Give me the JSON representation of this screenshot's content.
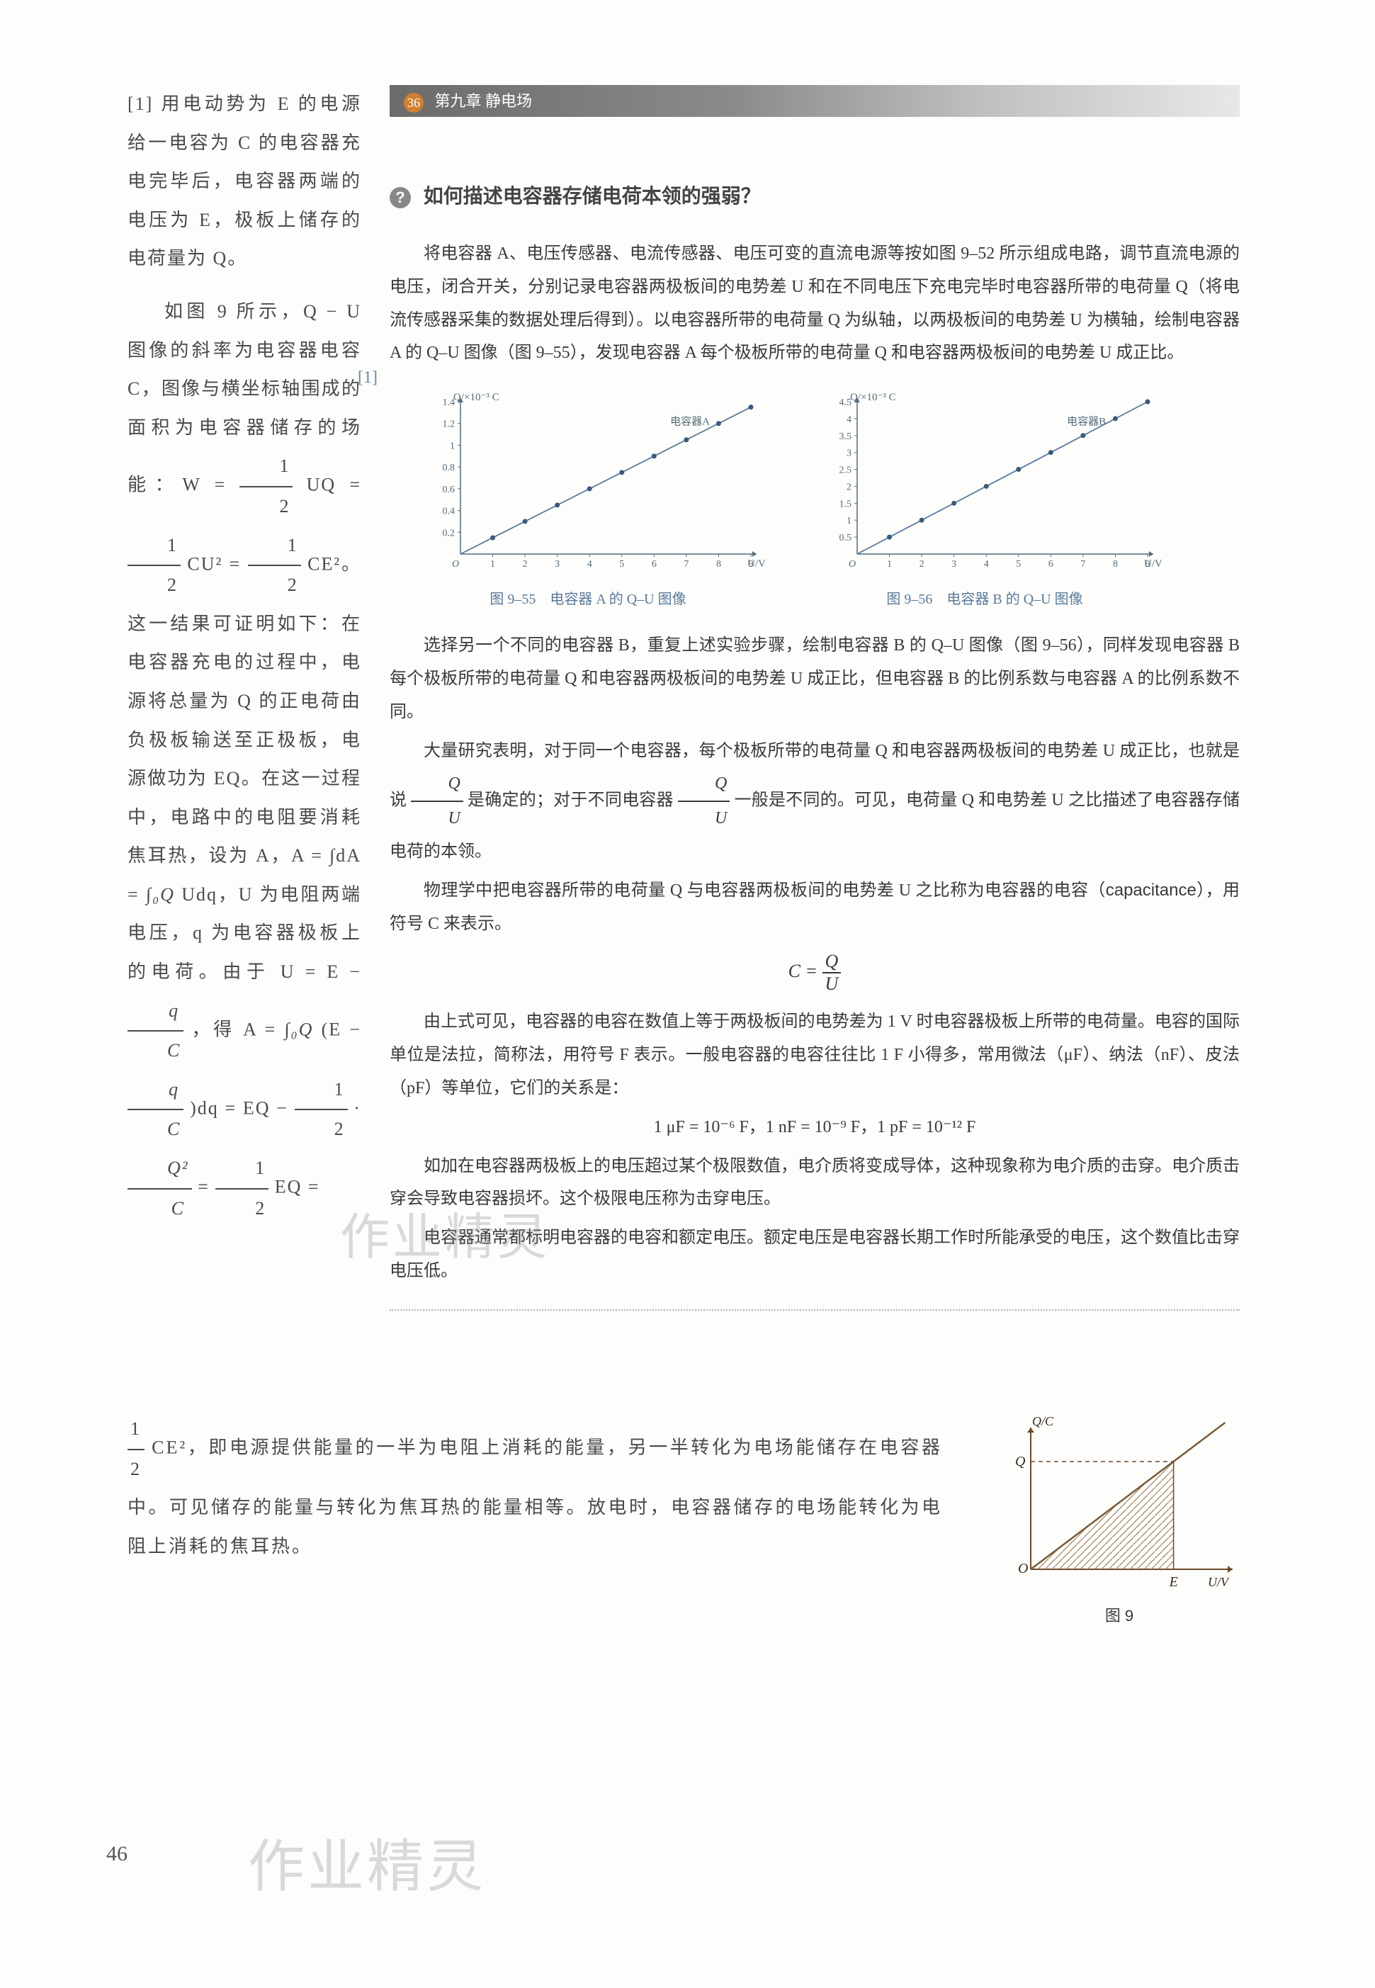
{
  "left_note": {
    "ref_label": "[1]",
    "p1": " 用电动势为 E 的电源给一电容为 C 的电容器充电完毕后，电容器两端的电压为 E，极板上储存的电荷量为 Q。",
    "p2a": "如图 9 所示，Q − U 图像的斜率为电容器电容 C，图像与横坐标轴围成的面积为电容器储存的场能：W = ",
    "frac_half": {
      "num": "1",
      "den": "2"
    },
    "p2b": "UQ = ",
    "p2c": "CU² = ",
    "p2d": "CE²。 这一结果可证明如下：在电容器充电的过程中，电源将总量为 Q 的正电荷由负极板输送至正极板，电源做功为 EQ。在这一过程中，电路中的电阻要消耗焦耳热，设为 A，A = ∫dA = ",
    "p2e": "Udq，U 为电阻两端电压，q 为电容器极板上的电荷。由于 U = E − ",
    "frac_qc": {
      "num": "q",
      "den": "C"
    },
    "p2f": "，得 A = ",
    "p2g": "(E − ",
    "p2h": ")dq = EQ − ",
    "p2i": " · ",
    "frac_q2c": {
      "num": "Q²",
      "den": "C"
    },
    "p2j": " = ",
    "p2k": "EQ = ",
    "bottom_start": "CE²，即电源提供能量的一半为电阻上消耗的能量，另一半转化为电场能储存在电容器中。可见储存的能量与转化为焦耳热的能量相等。放电时，电容器储存的电场能转化为电阻上消耗的焦耳热。",
    "integral1": "∫₀Q",
    "integral2": "∫₀Q"
  },
  "chapter": {
    "num": "36",
    "title": "第九章  静电场"
  },
  "question": "如何描述电容器存储电荷本领的强弱？",
  "main": {
    "p1": "将电容器 A、电压传感器、电流传感器、电压可变的直流电源等按如图 9–52 所示组成电路，调节直流电源的电压，闭合开关，分别记录电容器两极板间的电势差 U 和在不同电压下充电完毕时电容器所带的电荷量 Q（将电流传感器采集的数据处理后得到）。以电容器所带的电荷量 Q 为纵轴，以两极板间的电势差 U 为横轴，绘制电容器 A 的 Q–U 图像（图 9–55），发现电容器 A 每个极板所带的电荷量 Q 和电容器两极板间的电势差 U 成正比。",
    "annotation_ref": "[1]",
    "p2": "选择另一个不同的电容器 B，重复上述实验步骤，绘制电容器 B 的 Q–U 图像（图 9–56），同样发现电容器 B 每个极板所带的电荷量 Q 和电容器两极板间的电势差 U 成正比，但电容器 B 的比例系数与电容器 A 的比例系数不同。",
    "p3a": "大量研究表明，对于同一个电容器，每个极板所带的电荷量 Q 和电容器两极板间的电势差 U 成正比，也就是说 ",
    "frac_qu": {
      "num": "Q",
      "den": "U"
    },
    "p3b": " 是确定的；对于不同电容器 ",
    "p3c": " 一般是不同的。可见，电荷量 Q 和电势差 U 之比描述了电容器存储电荷的本领。",
    "p4a": "物理学中把电容器所带的电荷量 Q 与电容器两极板间的电势差 U 之比称为电容器的",
    "p4b": "电容（capacitance）",
    "p4c": "，用符号 C 来表示。",
    "formula_c": "C = Q / U",
    "p5": "由上式可见，电容器的电容在数值上等于两极板间的电势差为 1 V 时电容器极板上所带的电荷量。电容的国际单位是法拉，简称法，用符号 F 表示。一般电容器的电容往往比 1 F 小得多，常用微法（μF）、纳法（nF）、皮法（pF）等单位，它们的关系是：",
    "units_line": "1 μF = 10⁻⁶ F，1 nF = 10⁻⁹ F，1 pF = 10⁻¹² F",
    "p6": "如加在电容器两极板上的电压超过某个极限数值，电介质将变成导体，这种现象称为电介质的击穿。电介质击穿会导致电容器损坏。这个极限电压称为击穿电压。",
    "p7": "电容器通常都标明电容器的电容和额定电压。额定电压是电容器长期工作时所能承受的电压，这个数值比击穿电压低。"
  },
  "charts": {
    "chartA": {
      "ylabel": "Q/×10⁻³ C",
      "xlabel": "U/V",
      "series_label": "电容器A",
      "caption": "图 9–55　电容器 A 的 Q–U 图像",
      "xlim": [
        0,
        9
      ],
      "ylim": [
        0,
        1.4
      ],
      "xticks": [
        1,
        2,
        3,
        4,
        5,
        6,
        7,
        8,
        9
      ],
      "yticks": [
        0.2,
        0.4,
        0.6,
        0.8,
        1.0,
        1.2,
        1.4
      ],
      "points": [
        [
          1,
          0.15
        ],
        [
          2,
          0.3
        ],
        [
          3,
          0.45
        ],
        [
          4,
          0.6
        ],
        [
          5,
          0.75
        ],
        [
          6,
          0.9
        ],
        [
          7,
          1.05
        ],
        [
          8,
          1.2
        ],
        [
          9,
          1.35
        ]
      ],
      "line_color": "#5a7a9a",
      "point_color": "#3a5a7a",
      "axis_color": "#556b7a"
    },
    "chartB": {
      "ylabel": "Q/×10⁻³ C",
      "xlabel": "U/V",
      "series_label": "电容器B",
      "caption": "图 9–56　电容器 B 的 Q–U 图像",
      "xlim": [
        0,
        9
      ],
      "ylim": [
        0,
        4.5
      ],
      "xticks": [
        1,
        2,
        3,
        4,
        5,
        6,
        7,
        8,
        9
      ],
      "yticks": [
        0.5,
        1.0,
        1.5,
        2.0,
        2.5,
        3.0,
        3.5,
        4.0,
        4.5
      ],
      "points": [
        [
          1,
          0.5
        ],
        [
          2,
          1.0
        ],
        [
          3,
          1.5
        ],
        [
          4,
          2.0
        ],
        [
          5,
          2.5
        ],
        [
          6,
          3.0
        ],
        [
          7,
          3.5
        ],
        [
          8,
          4.0
        ],
        [
          9,
          4.5
        ]
      ],
      "line_color": "#5a7a9a",
      "point_color": "#3a5a7a",
      "axis_color": "#556b7a"
    }
  },
  "fig9": {
    "ylabel": "Q/C",
    "xlabel": "U/V",
    "q_label": "Q",
    "e_label": "E",
    "o_label": "O",
    "caption": "图 9",
    "line_color": "#7a5a3a",
    "hatch_color": "#a08060"
  },
  "page_number": "46",
  "watermark": "作业精灵"
}
